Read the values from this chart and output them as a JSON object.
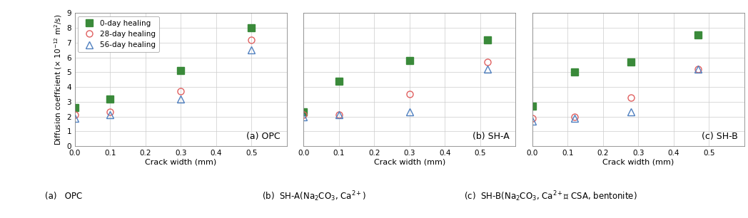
{
  "panels": [
    {
      "label": "(a) OPC",
      "x": [
        0.0,
        0.1,
        0.3,
        0.5
      ],
      "green": [
        2.6,
        3.2,
        5.1,
        8.0
      ],
      "red": [
        2.1,
        2.3,
        3.7,
        7.2
      ],
      "blue": [
        1.9,
        2.1,
        3.2,
        6.5
      ]
    },
    {
      "label": "(b) SH-A",
      "x": [
        0.0,
        0.1,
        0.3,
        0.52
      ],
      "green": [
        2.3,
        4.4,
        5.8,
        7.2
      ],
      "red": [
        2.1,
        2.1,
        3.5,
        5.7
      ],
      "blue": [
        2.0,
        2.1,
        2.3,
        5.2
      ]
    },
    {
      "label": "(c) SH-B",
      "x": [
        0.0,
        0.12,
        0.28,
        0.47
      ],
      "green": [
        2.7,
        5.0,
        5.7,
        7.5
      ],
      "red": [
        1.9,
        2.0,
        3.3,
        5.2
      ],
      "blue": [
        1.7,
        1.9,
        2.3,
        5.2
      ]
    }
  ],
  "legend_labels": [
    "0-day healing",
    "28-day healing",
    "56-day healing"
  ],
  "green_color": "#3a8a3a",
  "red_color": "#e06060",
  "blue_color": "#5080c0",
  "ylabel": "Diffusion coefficient (× 10$^{-12}$ m$^{2}$/s)",
  "xlabel": "Crack width (mm)",
  "ylim": [
    0,
    9
  ],
  "yticks": [
    0,
    1,
    2,
    3,
    4,
    5,
    6,
    7,
    8,
    9
  ],
  "xlim": [
    0.0,
    0.6
  ],
  "xticks": [
    0.0,
    0.1,
    0.2,
    0.3,
    0.4,
    0.5
  ],
  "xtick_labels": [
    "0.0",
    "0.1",
    "0.2",
    "0.3",
    "0.4",
    "0.5"
  ],
  "caption_a": "(a)   OPC",
  "caption_b": "(b)  SH-A(Na$_2$CO$_3$, Ca$^{2+}$)",
  "caption_c": "(c)  SH-B(Na$_2$CO$_3$, Ca$^{2+}$와 CSA, bentonite)"
}
